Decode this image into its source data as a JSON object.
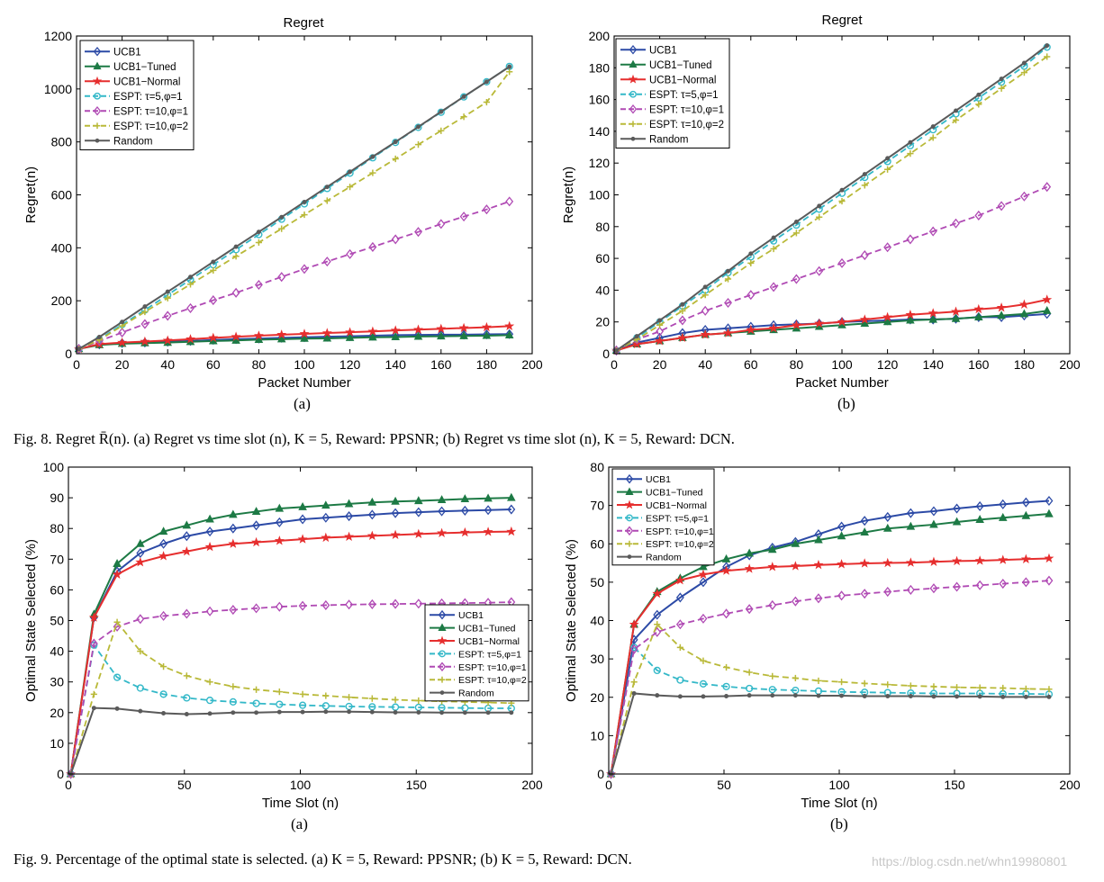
{
  "captions": {
    "fig8": "Fig. 8.   Regret R̄(n). (a) Regret vs time slot (n), K = 5, Reward: PPSNR; (b) Regret vs time slot (n), K = 5, Reward: DCN.",
    "fig9": "Fig. 9.   Percentage of the optimal state is selected. (a) K = 5, Reward: PPSNR; (b) K = 5, Reward: DCN.",
    "sub_a": "(a)",
    "sub_b": "(b)"
  },
  "watermark": "https://blog.csdn.net/whn19980801",
  "colors": {
    "UCB1": "#2c4aa6",
    "UCB1-Tuned": "#1d7a45",
    "UCB1-Normal": "#e62e2e",
    "ESPT5": "#33b8c8",
    "ESPT10_1": "#b04ab4",
    "ESPT10_2": "#b9b938",
    "Random": "#5a5a5a"
  },
  "chart_data": [
    {
      "id": "fig8a",
      "type": "line",
      "title": "Regret",
      "xlabel": "Packet Number",
      "ylabel": "Regret(n)",
      "xlim": [
        0,
        200
      ],
      "ylim": [
        0,
        1200
      ],
      "xticks": [
        0,
        20,
        40,
        60,
        80,
        100,
        120,
        140,
        160,
        180,
        200
      ],
      "yticks": [
        0,
        200,
        400,
        600,
        800,
        1000,
        1200
      ],
      "legend_position": "top-left",
      "x": [
        1,
        10,
        20,
        30,
        40,
        50,
        60,
        70,
        80,
        90,
        100,
        110,
        120,
        130,
        140,
        150,
        160,
        170,
        180,
        190
      ],
      "series": [
        {
          "name": "UCB1",
          "key": "UCB1",
          "marker": "diamond",
          "dash": "solid",
          "values": [
            18,
            35,
            40,
            42,
            45,
            48,
            52,
            55,
            57,
            60,
            62,
            64,
            66,
            68,
            70,
            71,
            72,
            72,
            73,
            74
          ]
        },
        {
          "name": "UCB1−Tuned",
          "key": "UCB1-Tuned",
          "marker": "triangle",
          "dash": "solid",
          "values": [
            18,
            33,
            38,
            40,
            42,
            45,
            48,
            50,
            53,
            55,
            57,
            58,
            60,
            62,
            63,
            65,
            66,
            67,
            68,
            70
          ]
        },
        {
          "name": "UCB1−Normal",
          "key": "UCB1-Normal",
          "marker": "star",
          "dash": "solid",
          "values": [
            18,
            36,
            42,
            46,
            50,
            55,
            60,
            64,
            68,
            72,
            75,
            78,
            81,
            84,
            88,
            91,
            94,
            97,
            100,
            104
          ]
        },
        {
          "name": "ESPT: τ=5,φ=1",
          "key": "ESPT5",
          "marker": "circle",
          "dash": "dashed",
          "values": [
            18,
            55,
            110,
            165,
            222,
            280,
            336,
            393,
            450,
            508,
            566,
            624,
            682,
            740,
            798,
            855,
            912,
            970,
            1027,
            1085
          ]
        },
        {
          "name": "ESPT: τ=10,φ=1",
          "key": "ESPT10_1",
          "marker": "diamond",
          "dash": "dashed",
          "values": [
            18,
            48,
            80,
            112,
            143,
            172,
            202,
            230,
            260,
            290,
            320,
            348,
            376,
            403,
            432,
            460,
            490,
            518,
            545,
            575
          ]
        },
        {
          "name": "ESPT: τ=10,φ=2",
          "key": "ESPT10_2",
          "marker": "plus",
          "dash": "dashed",
          "values": [
            18,
            52,
            105,
            158,
            210,
            262,
            315,
            368,
            420,
            472,
            525,
            578,
            630,
            683,
            736,
            790,
            842,
            895,
            950,
            1065
          ]
        },
        {
          "name": "Random",
          "key": "Random",
          "marker": "dot",
          "dash": "solid",
          "values": [
            18,
            63,
            120,
            178,
            234,
            290,
            347,
            404,
            460,
            516,
            573,
            630,
            687,
            744,
            800,
            857,
            914,
            971,
            1027,
            1084
          ]
        }
      ]
    },
    {
      "id": "fig8b",
      "type": "line",
      "title": "Regret",
      "xlabel": "Packet Number",
      "ylabel": "Regret(n)",
      "xlim": [
        0,
        200
      ],
      "ylim": [
        0,
        200
      ],
      "xticks": [
        0,
        20,
        40,
        60,
        80,
        100,
        120,
        140,
        160,
        180,
        200
      ],
      "yticks": [
        0,
        20,
        40,
        60,
        80,
        100,
        120,
        140,
        160,
        180,
        200
      ],
      "legend_position": "top-left",
      "x": [
        1,
        10,
        20,
        30,
        40,
        50,
        60,
        70,
        80,
        90,
        100,
        110,
        120,
        130,
        140,
        150,
        160,
        170,
        180,
        190
      ],
      "series": [
        {
          "name": "UCB1",
          "key": "UCB1",
          "marker": "diamond",
          "dash": "solid",
          "values": [
            2,
            7,
            10,
            13,
            15,
            16,
            17,
            18,
            18.5,
            19,
            20,
            20.5,
            21,
            21.5,
            21.5,
            22,
            23,
            23,
            24,
            25
          ]
        },
        {
          "name": "UCB1−Tuned",
          "key": "UCB1-Tuned",
          "marker": "triangle",
          "dash": "solid",
          "values": [
            2,
            6,
            8,
            10,
            12,
            13,
            14,
            15,
            16,
            17,
            18,
            19,
            20,
            21,
            21.5,
            22,
            23,
            24,
            25,
            27
          ]
        },
        {
          "name": "UCB1−Normal",
          "key": "UCB1-Normal",
          "marker": "star",
          "dash": "solid",
          "values": [
            2,
            6,
            8,
            10,
            12,
            13,
            15,
            16,
            18,
            19,
            20,
            21.5,
            23,
            24.5,
            25.5,
            26.5,
            28,
            29,
            31,
            34
          ]
        },
        {
          "name": "ESPT: τ=5,φ=1",
          "key": "ESPT5",
          "marker": "circle",
          "dash": "dashed",
          "values": [
            2,
            10,
            20,
            30,
            40,
            51,
            61,
            71,
            81,
            91,
            101,
            111,
            121,
            131,
            141,
            151,
            161,
            171,
            181,
            193
          ]
        },
        {
          "name": "ESPT: τ=10,φ=1",
          "key": "ESPT10_1",
          "marker": "diamond",
          "dash": "dashed",
          "values": [
            2,
            9,
            14,
            21,
            27,
            32,
            37,
            42,
            47,
            52,
            57,
            62,
            67,
            72,
            77,
            82,
            87,
            93,
            99,
            105
          ]
        },
        {
          "name": "ESPT: τ=10,φ=2",
          "key": "ESPT10_2",
          "marker": "plus",
          "dash": "dashed",
          "values": [
            2,
            9,
            18,
            27,
            37,
            47,
            57,
            66,
            76,
            86,
            96,
            106,
            116,
            126,
            136,
            147,
            157,
            167,
            177,
            187
          ]
        },
        {
          "name": "Random",
          "key": "Random",
          "marker": "dot",
          "dash": "solid",
          "values": [
            2,
            11,
            21,
            31,
            42,
            52,
            63,
            73,
            83,
            93,
            103,
            113,
            123,
            133,
            143,
            153,
            163,
            173,
            183,
            194
          ]
        }
      ]
    },
    {
      "id": "fig9a",
      "type": "line",
      "title": "",
      "xlabel": "Time Slot (n)",
      "ylabel": "Optimal State Selected (%)",
      "xlim": [
        0,
        200
      ],
      "ylim": [
        0,
        100
      ],
      "xticks": [
        0,
        50,
        100,
        150,
        200
      ],
      "yticks": [
        0,
        10,
        20,
        30,
        40,
        50,
        60,
        70,
        80,
        90,
        100
      ],
      "legend_position": "right",
      "x": [
        1,
        11,
        21,
        31,
        41,
        51,
        61,
        71,
        81,
        91,
        101,
        111,
        121,
        131,
        141,
        151,
        161,
        171,
        181,
        191
      ],
      "series": [
        {
          "name": "UCB1",
          "key": "UCB1",
          "marker": "diamond",
          "dash": "solid",
          "values": [
            0,
            51,
            66,
            72,
            75,
            77.5,
            79,
            80,
            81,
            82,
            83,
            83.5,
            84,
            84.5,
            85,
            85.3,
            85.6,
            85.8,
            86,
            86.2
          ]
        },
        {
          "name": "UCB1−Tuned",
          "key": "UCB1-Tuned",
          "marker": "triangle",
          "dash": "solid",
          "values": [
            0,
            52,
            68.5,
            75,
            79,
            81,
            83,
            84.5,
            85.5,
            86.5,
            87,
            87.5,
            88,
            88.5,
            88.8,
            89,
            89.3,
            89.6,
            89.8,
            90
          ]
        },
        {
          "name": "UCB1−Normal",
          "key": "UCB1-Normal",
          "marker": "star",
          "dash": "solid",
          "values": [
            0,
            51,
            65,
            69,
            71,
            72.5,
            74,
            75,
            75.5,
            76,
            76.5,
            77,
            77.3,
            77.6,
            77.9,
            78.2,
            78.5,
            78.7,
            78.9,
            79
          ]
        },
        {
          "name": "ESPT: τ=5,φ=1",
          "key": "ESPT5",
          "marker": "circle",
          "dash": "dashed",
          "values": [
            0,
            42,
            31.5,
            28,
            26,
            24.8,
            24,
            23.5,
            23,
            22.7,
            22.4,
            22.2,
            22,
            21.9,
            21.8,
            21.7,
            21.6,
            21.5,
            21.4,
            21.4
          ]
        },
        {
          "name": "ESPT: τ=10,φ=1",
          "key": "ESPT10_1",
          "marker": "diamond",
          "dash": "dashed",
          "values": [
            0,
            42.5,
            48,
            50.5,
            51.5,
            52.2,
            53,
            53.5,
            54,
            54.5,
            54.8,
            55,
            55.2,
            55.3,
            55.4,
            55.5,
            55.6,
            55.7,
            55.8,
            56
          ]
        },
        {
          "name": "ESPT: τ=10,φ=2",
          "key": "ESPT10_2",
          "marker": "plus",
          "dash": "dashed",
          "values": [
            0,
            26,
            49.5,
            40,
            35,
            32,
            30,
            28.5,
            27.5,
            26.8,
            26,
            25.5,
            25,
            24.6,
            24.2,
            23.9,
            23.7,
            23.5,
            23.3,
            23.1
          ]
        },
        {
          "name": "Random",
          "key": "Random",
          "marker": "dot",
          "dash": "solid",
          "values": [
            0,
            21.5,
            21.3,
            20.5,
            19.8,
            19.5,
            19.7,
            20,
            20,
            20.2,
            20.2,
            20.3,
            20.3,
            20.2,
            20.1,
            20.1,
            20,
            20,
            20,
            20
          ]
        }
      ]
    },
    {
      "id": "fig9b",
      "type": "line",
      "title": "",
      "xlabel": "Time Slot (n)",
      "ylabel": "Optimal State Selected (%)",
      "xlim": [
        0,
        200
      ],
      "ylim": [
        0,
        80
      ],
      "xticks": [
        0,
        50,
        100,
        150,
        200
      ],
      "yticks": [
        0,
        10,
        20,
        30,
        40,
        50,
        60,
        70,
        80
      ],
      "legend_position": "top-left",
      "x": [
        1,
        11,
        21,
        31,
        41,
        51,
        61,
        71,
        81,
        91,
        101,
        111,
        121,
        131,
        141,
        151,
        161,
        171,
        181,
        191
      ],
      "series": [
        {
          "name": "UCB1",
          "key": "UCB1",
          "marker": "diamond",
          "dash": "solid",
          "values": [
            0,
            35,
            41.5,
            46,
            50,
            54,
            57,
            59,
            60.5,
            62.5,
            64.5,
            66,
            67,
            68,
            68.5,
            69.2,
            69.8,
            70.3,
            70.8,
            71.2
          ]
        },
        {
          "name": "UCB1−Tuned",
          "key": "UCB1-Tuned",
          "marker": "triangle",
          "dash": "solid",
          "values": [
            0,
            39,
            47.5,
            51,
            54,
            56,
            57.5,
            58.5,
            60,
            61,
            62,
            63,
            64,
            64.5,
            65,
            65.7,
            66.3,
            66.8,
            67.3,
            67.8
          ]
        },
        {
          "name": "UCB1−Normal",
          "key": "UCB1-Normal",
          "marker": "star",
          "dash": "solid",
          "values": [
            0,
            39,
            47,
            50.5,
            52,
            53,
            53.5,
            54,
            54.2,
            54.5,
            54.7,
            54.9,
            55,
            55.1,
            55.3,
            55.5,
            55.6,
            55.8,
            56,
            56.2
          ]
        },
        {
          "name": "ESPT: τ=5,φ=1",
          "key": "ESPT5",
          "marker": "circle",
          "dash": "dashed",
          "values": [
            0,
            33,
            27,
            24.5,
            23.5,
            22.8,
            22.3,
            22,
            21.8,
            21.6,
            21.4,
            21.3,
            21.2,
            21.1,
            21,
            21,
            21,
            20.9,
            20.9,
            20.8
          ]
        },
        {
          "name": "ESPT: τ=10,φ=1",
          "key": "ESPT10_1",
          "marker": "diamond",
          "dash": "dashed",
          "values": [
            0,
            32.5,
            37,
            39,
            40.5,
            41.8,
            43,
            44,
            45,
            45.8,
            46.5,
            47,
            47.5,
            48,
            48.4,
            48.8,
            49.2,
            49.6,
            50,
            50.4
          ]
        },
        {
          "name": "ESPT: τ=10,φ=2",
          "key": "ESPT10_2",
          "marker": "plus",
          "dash": "dashed",
          "values": [
            0,
            24,
            39,
            33,
            29.5,
            27.8,
            26.5,
            25.5,
            25,
            24.3,
            24,
            23.6,
            23.3,
            23,
            22.8,
            22.6,
            22.5,
            22.4,
            22.2,
            22.1
          ]
        },
        {
          "name": "Random",
          "key": "Random",
          "marker": "dot",
          "dash": "solid",
          "values": [
            0,
            21,
            20.5,
            20.2,
            20.2,
            20.3,
            20.5,
            20.5,
            20.5,
            20.4,
            20.4,
            20.3,
            20.3,
            20.3,
            20.2,
            20.2,
            20.2,
            20.1,
            20.1,
            20.1
          ]
        }
      ]
    }
  ]
}
